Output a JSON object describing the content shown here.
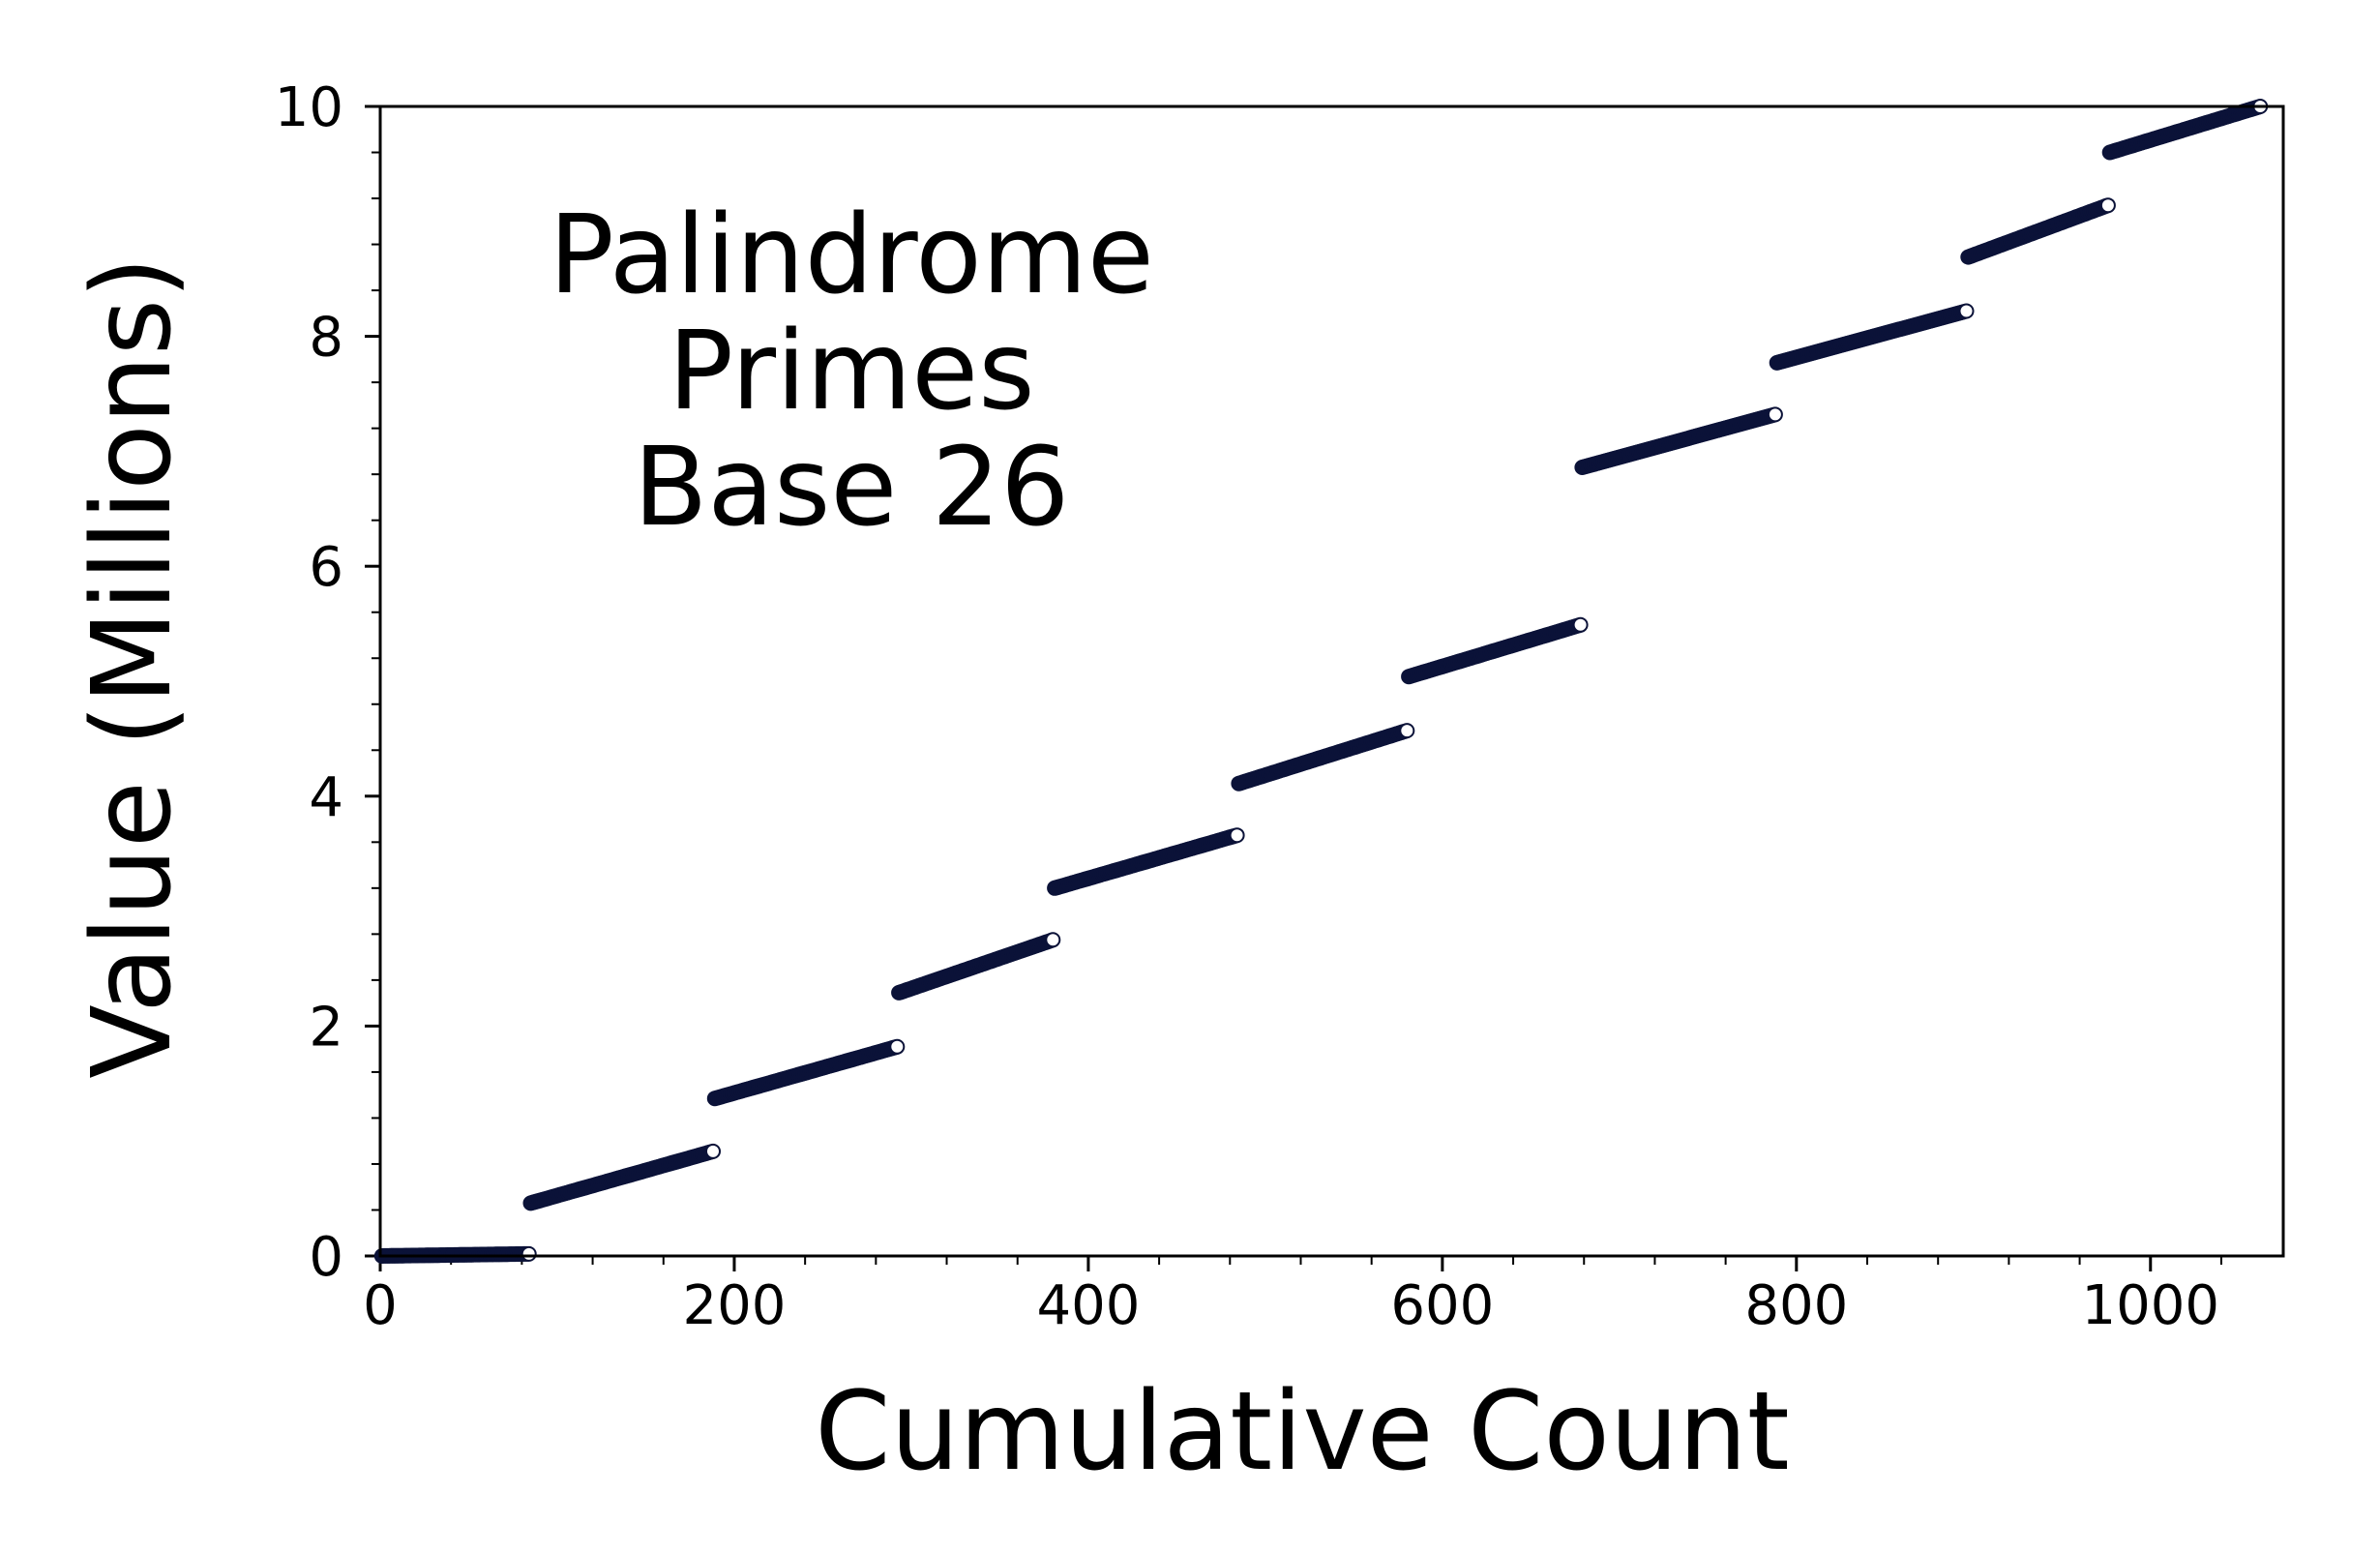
{
  "chart_data": {
    "type": "scatter",
    "annotation": [
      "Palindrome",
      "Primes",
      "Base 26"
    ],
    "xlabel": "Cumulative Count",
    "ylabel": "Value (Millions)",
    "xlim": [
      0,
      1075
    ],
    "ylim": [
      0,
      10
    ],
    "x_ticks": [
      0,
      200,
      400,
      600,
      800,
      1000
    ],
    "x_tick_labels": [
      "0",
      "200",
      "400",
      "600",
      "800",
      "1000"
    ],
    "y_ticks": [
      0,
      2,
      4,
      6,
      8,
      10
    ],
    "y_tick_labels": [
      "0",
      "2",
      "4",
      "6",
      "8",
      "10"
    ],
    "x_minor_step": 40,
    "y_minor_step": 0.4,
    "grid": false,
    "legend": "none",
    "marker_color": "#0b1238",
    "endpoint_marker_color": "#ffffff",
    "segments": [
      {
        "x_start": 1,
        "x_end": 84,
        "y_start": 0.0003,
        "y_end": 0.018
      },
      {
        "x_start": 85,
        "x_end": 188,
        "y_start": 0.46,
        "y_end": 0.91
      },
      {
        "x_start": 189,
        "x_end": 292,
        "y_start": 1.37,
        "y_end": 1.82
      },
      {
        "x_start": 293,
        "x_end": 380,
        "y_start": 2.29,
        "y_end": 2.75
      },
      {
        "x_start": 381,
        "x_end": 484,
        "y_start": 3.2,
        "y_end": 3.66
      },
      {
        "x_start": 485,
        "x_end": 580,
        "y_start": 4.11,
        "y_end": 4.57
      },
      {
        "x_start": 581,
        "x_end": 678,
        "y_start": 5.04,
        "y_end": 5.49
      },
      {
        "x_start": 679,
        "x_end": 788,
        "y_start": 6.86,
        "y_end": 7.32
      },
      {
        "x_start": 789,
        "x_end": 896,
        "y_start": 7.77,
        "y_end": 8.22
      },
      {
        "x_start": 897,
        "x_end": 976,
        "y_start": 8.69,
        "y_end": 9.14
      },
      {
        "x_start": 977,
        "x_end": 1062,
        "y_start": 9.6,
        "y_end": 10.0
      }
    ]
  }
}
